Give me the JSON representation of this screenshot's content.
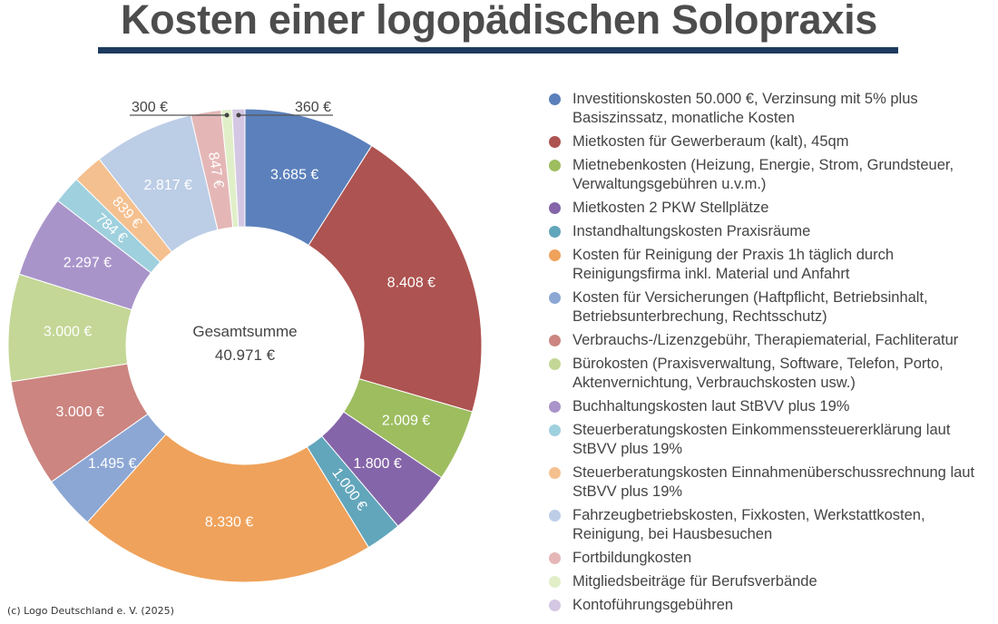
{
  "chart_data": {
    "type": "pie",
    "variant": "donut",
    "title": "Kosten einer logopädischen Solopraxis",
    "center_label": "Gesamtsumme",
    "center_value": "40.971 €",
    "currency": "€",
    "legend_position": "right",
    "slices": [
      {
        "name": "Investitionskosten 50.000 €, Verzinsung mit 5% plus Basiszinssatz, monatliche Kosten",
        "value": 3685,
        "label": "3.685 €",
        "color": "#5b80bb"
      },
      {
        "name": "Mietkosten für Gewerberaum (kalt), 45qm",
        "value": 8408,
        "label": "8.408 €",
        "color": "#ad5351"
      },
      {
        "name": "Mietnebenkosten (Heizung, Energie, Strom, Grundsteuer, Verwaltungsgebühren u.v.m.)",
        "value": 2009,
        "label": "2.009 €",
        "color": "#9dbd5f"
      },
      {
        "name": "Mietkosten 2 PKW Stellplätze",
        "value": 1800,
        "label": "1.800 €",
        "color": "#8565a9"
      },
      {
        "name": "Instandhaltungskosten Praxisräume",
        "value": 1000,
        "label": "1.000 €",
        "color": "#62a6bc"
      },
      {
        "name": "Kosten für Reinigung der Praxis 1h täglich durch Reinigungsfirma inkl. Material und Anfahrt",
        "value": 8330,
        "label": "8.330 €",
        "color": "#efa25b"
      },
      {
        "name": "Kosten für Versicherungen (Haftpflicht, Betriebsinhalt, Betriebsunterbrechung, Rechtsschutz)",
        "value": 1495,
        "label": "1.495 €",
        "color": "#8ca7d4"
      },
      {
        "name": "Verbrauchs-/Lizenzgebühr, Therapiematerial, Fachliteratur",
        "value": 3000,
        "label": "3.000 €",
        "color": "#cc8581"
      },
      {
        "name": "Bürokosten (Praxisverwaltung, Software, Telefon, Porto, Aktenvernichtung, Verbrauchskosten usw.)",
        "value": 3000,
        "label": "3.000 €",
        "color": "#c4d796"
      },
      {
        "name": "Buchhaltungskosten laut StBVV plus 19%",
        "value": 2297,
        "label": "2.297 €",
        "color": "#a994ca"
      },
      {
        "name": "Steuerberatungskosten Einkommenssteuererklärung laut StBVV plus 19%",
        "value": 784,
        "label": "784 €",
        "color": "#9fd0de"
      },
      {
        "name": "Steuerberatungskosten Einnahmenüberschussrechnung laut StBVV plus 19%",
        "value": 839,
        "label": "839 €",
        "color": "#f5c08f"
      },
      {
        "name": "Fahrzeugbetriebskosten, Fixkosten, Werkstattkosten, Reinigung, bei Hausbesuchen",
        "value": 2817,
        "label": "2.817 €",
        "color": "#bccde6"
      },
      {
        "name": "Fortbildungkosten",
        "value": 847,
        "label": "847 €",
        "color": "#e4b7b6"
      },
      {
        "name": "Mitgliedsbeiträge für Berufsverbände",
        "value": 300,
        "label": "300 €",
        "color": "#e0efc8"
      },
      {
        "name": "Kontoführungsgebühren",
        "value": 360,
        "label": "360 €",
        "color": "#d4c7e3"
      }
    ]
  },
  "footer": "(c) Logo Deutschland e. V. (2025)"
}
